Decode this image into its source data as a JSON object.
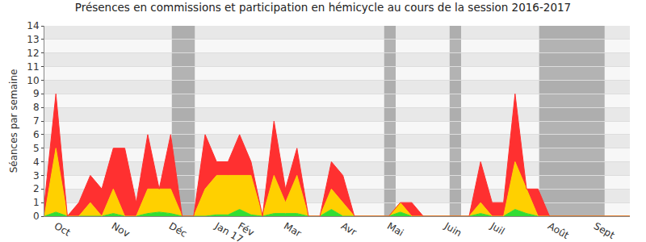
{
  "chart_data": {
    "type": "area",
    "title": "Présences en commissions et participation en hémicycle au cours de la session 2016-2017",
    "y_label": "Séances par semaine",
    "stacked": true,
    "grid": true,
    "categories": [
      null,
      "Oct",
      null,
      null,
      null,
      null,
      "Nov",
      null,
      null,
      null,
      null,
      "Déc",
      null,
      null,
      null,
      "Jan 17",
      null,
      "Fév",
      null,
      null,
      null,
      "Mar",
      null,
      null,
      null,
      null,
      "Avr",
      null,
      null,
      null,
      "Mai",
      null,
      null,
      null,
      null,
      "Juin",
      null,
      null,
      null,
      "Juil",
      null,
      null,
      null,
      null,
      "Août",
      null,
      null,
      null,
      "Sept",
      null,
      null,
      null
    ],
    "xlim": [
      0,
      51
    ],
    "ylim": [
      0,
      14
    ],
    "yticks": [
      0,
      1,
      2,
      3,
      4,
      5,
      6,
      7,
      8,
      9,
      10,
      11,
      12,
      13,
      14
    ],
    "shaded_weeks": [
      [
        11.1,
        13.1
      ],
      [
        29.6,
        30.6
      ],
      [
        35.3,
        36.3
      ],
      [
        43.1,
        48.8
      ]
    ],
    "series": [
      {
        "color": "#33dd33",
        "values": [
          0,
          0.3,
          0,
          0,
          0,
          0,
          0.2,
          0,
          0,
          0.2,
          0.3,
          0.2,
          0,
          0,
          0,
          0.1,
          0.1,
          0.5,
          0.1,
          0,
          0.2,
          0.2,
          0.2,
          0,
          0,
          0.5,
          0,
          0,
          0,
          0,
          0,
          0.3,
          0,
          0,
          0,
          0,
          0,
          0,
          0.2,
          0,
          0,
          0.5,
          0.2,
          0,
          0,
          0,
          0,
          0,
          0,
          0,
          0,
          0
        ]
      },
      {
        "color": "#ffd000",
        "values": [
          0,
          4.7,
          0,
          0,
          1,
          0,
          1.8,
          0,
          0,
          1.8,
          1.7,
          1.8,
          0,
          0,
          2,
          2.9,
          2.9,
          2.5,
          2.9,
          0,
          2.8,
          0.8,
          2.8,
          0,
          0,
          1.5,
          1,
          0,
          0,
          0,
          0,
          0.7,
          0,
          0,
          0,
          0,
          0,
          0,
          0.8,
          0,
          0,
          3.5,
          1.8,
          0,
          0,
          0,
          0,
          0,
          0,
          0,
          0,
          0
        ]
      },
      {
        "color": "#ff3030",
        "values": [
          1,
          4,
          0,
          1,
          2,
          2,
          3,
          5,
          1,
          4,
          0,
          4,
          0,
          0,
          4,
          1,
          1,
          3,
          1,
          0,
          4,
          1,
          2,
          0,
          0,
          2,
          2,
          0,
          0,
          0,
          0,
          0,
          1,
          0,
          0,
          0,
          0,
          0,
          3,
          1,
          1,
          5,
          0,
          2,
          0,
          0,
          0,
          0,
          0,
          0,
          0,
          0
        ]
      }
    ]
  }
}
